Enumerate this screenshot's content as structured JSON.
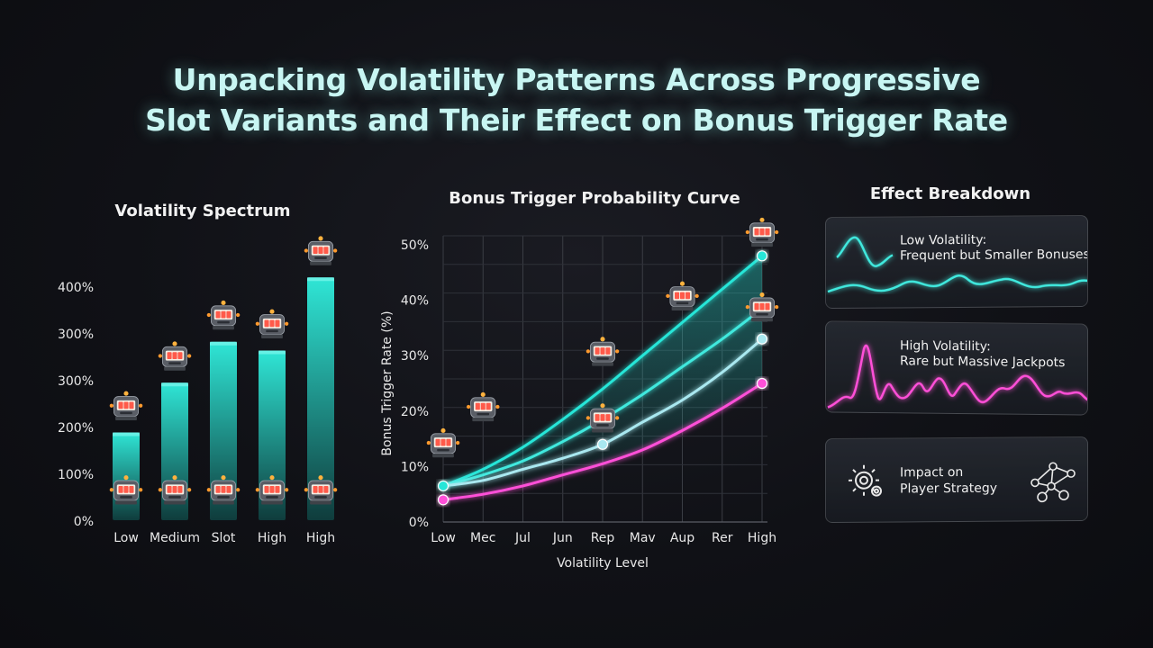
{
  "title": {
    "line1": "Unpacking Volatility Patterns Across Progressive",
    "line2": "Slot Variants and Their Effect on Bonus Trigger Rate"
  },
  "colors": {
    "bar_top": "#2fe6d6",
    "bar_bottom": "#0f3c3c",
    "teal": "#26e6d8",
    "cyan": "#3fe9de",
    "light_blue": "#a9e8f0",
    "magenta": "#ff4fd8",
    "title": "#c8f6f3"
  },
  "chart_data": [
    {
      "type": "bar",
      "title": "Volatility Spectrum",
      "categories": [
        "Low",
        "Medium",
        "Slot",
        "High",
        "High"
      ],
      "values": [
        150,
        235,
        305,
        290,
        415
      ],
      "ytick_labels": [
        "0%",
        "100%",
        "200%",
        "300%",
        "300%",
        "400%"
      ],
      "ylim": [
        0,
        450
      ],
      "icon": "slot-machine-icon",
      "grid": false
    },
    {
      "type": "line",
      "title": "Bonus Trigger Probability Curve",
      "xlabel": "Volatility Level",
      "ylabel": "Bonus Trigger Rate (%)",
      "x": [
        "Low",
        "Mec",
        "Jul",
        "Jun",
        "Rep",
        "Mav",
        "Aup",
        "Rer",
        "High"
      ],
      "ytick_labels": [
        "0%",
        "10%",
        "20%",
        "30%",
        "40%",
        "50%"
      ],
      "ylim": [
        0,
        50
      ],
      "grid": true,
      "series": [
        {
          "color": "#26e6d8",
          "values": [
            6.5,
            9.5,
            13.5,
            18.5,
            24,
            30,
            36,
            42,
            48
          ]
        },
        {
          "color": "#3fe9de",
          "values": [
            6.5,
            8.5,
            11,
            14.5,
            18.5,
            23,
            28,
            33,
            38.5
          ]
        },
        {
          "color": "#a9e8f0",
          "values": [
            6.5,
            7.5,
            9.5,
            11.5,
            14,
            18,
            22,
            27,
            33
          ]
        },
        {
          "color": "#ff4fd8",
          "values": [
            4,
            5,
            6.5,
            8.5,
            10.5,
            13,
            16.5,
            20.5,
            25
          ]
        }
      ],
      "icon_markers": [
        {
          "x": 0,
          "y": 14
        },
        {
          "x": 1,
          "y": 20.5
        },
        {
          "x": 4,
          "y": 30.5
        },
        {
          "x": 4,
          "y": 18.5
        },
        {
          "x": 6,
          "y": 40.5
        },
        {
          "x": 8,
          "y": 52
        },
        {
          "x": 8,
          "y": 38.5
        }
      ]
    }
  ],
  "effects": {
    "title": "Effect Breakdown",
    "cards": [
      {
        "line1": "Low Volatility:",
        "line2": "Frequent but Smaller Bonuses",
        "color": "#3fe9de"
      },
      {
        "line1": "High Volatility:",
        "line2": "Rare but Massive Jackpots",
        "color": "#ff4fd8"
      },
      {
        "line1": "Impact on",
        "line2": "Player Strategy",
        "icon_left": "gear-icon",
        "icon_right": "network-icon"
      }
    ]
  }
}
